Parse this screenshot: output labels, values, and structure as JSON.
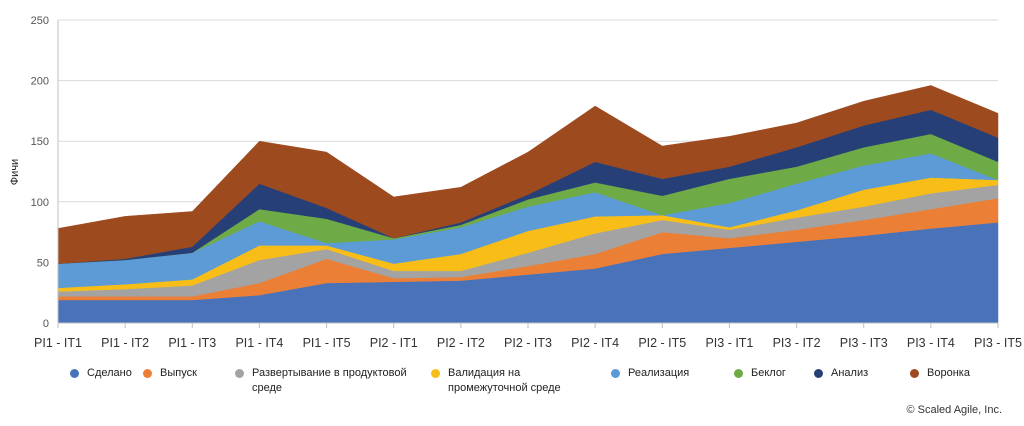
{
  "chart_data": {
    "type": "area",
    "stacked": true,
    "ylabel": "Фичи",
    "ylim": [
      0,
      250
    ],
    "yticks": [
      0,
      50,
      100,
      150,
      200,
      250
    ],
    "grid": true,
    "legend_position": "bottom",
    "categories": [
      "PI1 - IT1",
      "PI1 - IT2",
      "PI1 - IT3",
      "PI1 - IT4",
      "PI1 - IT5",
      "PI2 - IT1",
      "PI2 - IT2",
      "PI2 - IT3",
      "PI2 - IT4",
      "PI2 - IT5",
      "PI3 - IT1",
      "PI3 - IT2",
      "PI3 - IT3",
      "PI3 - IT4",
      "PI3 - IT5"
    ],
    "series": [
      {
        "name": "Сделано",
        "color": "#4a72b8",
        "values": [
          19,
          19,
          19,
          23,
          33,
          34,
          35,
          40,
          45,
          57,
          62,
          67,
          72,
          78,
          83
        ]
      },
      {
        "name": "Выпуск",
        "color": "#ec7f36",
        "values": [
          3,
          3,
          3,
          10,
          20,
          3,
          3,
          7,
          12,
          18,
          8,
          10,
          13,
          16,
          20
        ]
      },
      {
        "name": "Развертывание в продуктовой среде",
        "color": "#a3a3a3",
        "values": [
          4,
          6,
          9,
          19,
          8,
          6,
          5,
          11,
          17,
          10,
          7,
          10,
          11,
          13,
          11
        ]
      },
      {
        "name": "Валидация на промежуточной среде",
        "color": "#f8be17",
        "values": [
          3,
          4,
          5,
          12,
          3,
          6,
          14,
          18,
          14,
          4,
          2,
          6,
          14,
          13,
          4
        ]
      },
      {
        "name": "Реализация",
        "color": "#5c9bd5",
        "values": [
          20,
          20,
          22,
          20,
          2,
          20,
          22,
          20,
          20,
          0,
          20,
          22,
          20,
          20,
          0
        ]
      },
      {
        "name": "Беклог",
        "color": "#6eab47",
        "values": [
          0,
          0,
          0,
          10,
          20,
          1,
          2,
          6,
          8,
          16,
          20,
          14,
          15,
          16,
          15
        ]
      },
      {
        "name": "Анализ",
        "color": "#263f77",
        "values": [
          0,
          1,
          5,
          21,
          9,
          0,
          2,
          4,
          17,
          14,
          10,
          16,
          18,
          20,
          20
        ]
      },
      {
        "name": "Воронка",
        "color": "#9e4a1f",
        "values": [
          29,
          35,
          29,
          35,
          46,
          34,
          29,
          35,
          46,
          27,
          25,
          20,
          20,
          20,
          20
        ]
      }
    ]
  },
  "legend_items": [
    {
      "label": "Сделано",
      "color": "#4a72b8"
    },
    {
      "label": "Выпуск",
      "color": "#ec7f36"
    },
    {
      "label": "Развертывание в продуктовой среде",
      "color": "#a3a3a3"
    },
    {
      "label": "Валидация на промежуточной среде",
      "color": "#f8be17"
    },
    {
      "label": "Реализация",
      "color": "#5c9bd5"
    },
    {
      "label": "Беклог",
      "color": "#6eab47"
    },
    {
      "label": "Анализ",
      "color": "#263f77"
    },
    {
      "label": "Воронка",
      "color": "#9e4a1f"
    }
  ],
  "credit": "© Scaled Agile, Inc."
}
